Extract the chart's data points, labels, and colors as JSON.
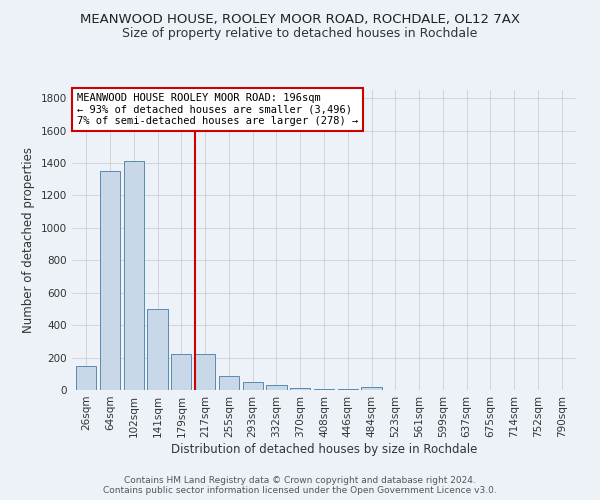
{
  "title": "MEANWOOD HOUSE, ROOLEY MOOR ROAD, ROCHDALE, OL12 7AX",
  "subtitle": "Size of property relative to detached houses in Rochdale",
  "xlabel": "Distribution of detached houses by size in Rochdale",
  "ylabel": "Number of detached properties",
  "footer_line1": "Contains HM Land Registry data © Crown copyright and database right 2024.",
  "footer_line2": "Contains public sector information licensed under the Open Government Licence v3.0.",
  "categories": [
    "26sqm",
    "64sqm",
    "102sqm",
    "141sqm",
    "179sqm",
    "217sqm",
    "255sqm",
    "293sqm",
    "332sqm",
    "370sqm",
    "408sqm",
    "446sqm",
    "484sqm",
    "523sqm",
    "561sqm",
    "599sqm",
    "637sqm",
    "675sqm",
    "714sqm",
    "752sqm",
    "790sqm"
  ],
  "values": [
    145,
    1350,
    1410,
    500,
    225,
    225,
    85,
    50,
    28,
    15,
    8,
    5,
    18,
    0,
    0,
    0,
    0,
    0,
    0,
    0,
    0
  ],
  "bar_color": "#c8d8e8",
  "bar_edge_color": "#5a8ab0",
  "red_line_color": "#cc0000",
  "red_line_index": 4.57,
  "annotation_text": "MEANWOOD HOUSE ROOLEY MOOR ROAD: 196sqm\n← 93% of detached houses are smaller (3,496)\n7% of semi-detached houses are larger (278) →",
  "annotation_box_color": "#ffffff",
  "annotation_box_edge": "#cc0000",
  "ylim": [
    0,
    1850
  ],
  "yticks": [
    0,
    200,
    400,
    600,
    800,
    1000,
    1200,
    1400,
    1600,
    1800
  ],
  "background_color": "#edf2f8",
  "grid_color": "#c8c8c8",
  "title_fontsize": 9.5,
  "subtitle_fontsize": 9,
  "axis_label_fontsize": 8.5,
  "tick_fontsize": 7.5,
  "annotation_fontsize": 7.5,
  "footer_fontsize": 6.5
}
